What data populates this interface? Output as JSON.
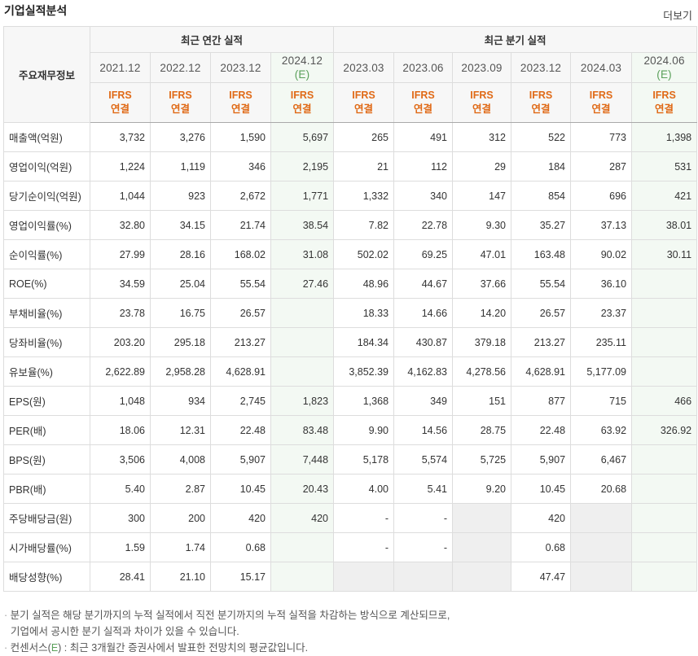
{
  "header": {
    "title": "기업실적분석",
    "more_label": "더보기"
  },
  "table": {
    "row_header_label": "주요재무정보",
    "group_annual": "최근 연간 실적",
    "group_quarter": "최근 분기 실적",
    "periods": [
      {
        "label": "2021.12",
        "est": ""
      },
      {
        "label": "2022.12",
        "est": ""
      },
      {
        "label": "2023.12",
        "est": ""
      },
      {
        "label": "2024.12",
        "est": "(E)"
      },
      {
        "label": "2023.03",
        "est": ""
      },
      {
        "label": "2023.06",
        "est": ""
      },
      {
        "label": "2023.09",
        "est": ""
      },
      {
        "label": "2023.12",
        "est": ""
      },
      {
        "label": "2024.03",
        "est": ""
      },
      {
        "label": "2024.06",
        "est": "(E)"
      }
    ],
    "ifrs_line1": "IFRS",
    "ifrs_line2": "연결",
    "rows": [
      {
        "label": "매출액(억원)",
        "values": [
          "3,732",
          "3,276",
          "1,590",
          "5,697",
          "265",
          "491",
          "312",
          "522",
          "773",
          "1,398"
        ]
      },
      {
        "label": "영업이익(억원)",
        "values": [
          "1,224",
          "1,119",
          "346",
          "2,195",
          "21",
          "112",
          "29",
          "184",
          "287",
          "531"
        ]
      },
      {
        "label": "당기순이익(억원)",
        "values": [
          "1,044",
          "923",
          "2,672",
          "1,771",
          "1,332",
          "340",
          "147",
          "854",
          "696",
          "421"
        ]
      },
      {
        "label": "영업이익률(%)",
        "values": [
          "32.80",
          "34.15",
          "21.74",
          "38.54",
          "7.82",
          "22.78",
          "9.30",
          "35.27",
          "37.13",
          "38.01"
        ]
      },
      {
        "label": "순이익률(%)",
        "values": [
          "27.99",
          "28.16",
          "168.02",
          "31.08",
          "502.02",
          "69.25",
          "47.01",
          "163.48",
          "90.02",
          "30.11"
        ]
      },
      {
        "label": "ROE(%)",
        "values": [
          "34.59",
          "25.04",
          "55.54",
          "27.46",
          "48.96",
          "44.67",
          "37.66",
          "55.54",
          "36.10",
          ""
        ]
      },
      {
        "label": "부채비율(%)",
        "values": [
          "23.78",
          "16.75",
          "26.57",
          "",
          "18.33",
          "14.66",
          "14.20",
          "26.57",
          "23.37",
          ""
        ]
      },
      {
        "label": "당좌비율(%)",
        "values": [
          "203.20",
          "295.18",
          "213.27",
          "",
          "184.34",
          "430.87",
          "379.18",
          "213.27",
          "235.11",
          ""
        ]
      },
      {
        "label": "유보율(%)",
        "values": [
          "2,622.89",
          "2,958.28",
          "4,628.91",
          "",
          "3,852.39",
          "4,162.83",
          "4,278.56",
          "4,628.91",
          "5,177.09",
          ""
        ]
      },
      {
        "label": "EPS(원)",
        "values": [
          "1,048",
          "934",
          "2,745",
          "1,823",
          "1,368",
          "349",
          "151",
          "877",
          "715",
          "466"
        ]
      },
      {
        "label": "PER(배)",
        "values": [
          "18.06",
          "12.31",
          "22.48",
          "83.48",
          "9.90",
          "14.56",
          "28.75",
          "22.48",
          "63.92",
          "326.92"
        ]
      },
      {
        "label": "BPS(원)",
        "values": [
          "3,506",
          "4,008",
          "5,907",
          "7,448",
          "5,178",
          "5,574",
          "5,725",
          "5,907",
          "6,467",
          ""
        ]
      },
      {
        "label": "PBR(배)",
        "values": [
          "5.40",
          "2.87",
          "10.45",
          "20.43",
          "4.00",
          "5.41",
          "9.20",
          "10.45",
          "20.68",
          ""
        ]
      },
      {
        "label": "주당배당금(원)",
        "values": [
          "300",
          "200",
          "420",
          "420",
          "-",
          "-",
          "",
          "420",
          "",
          ""
        ]
      },
      {
        "label": "시가배당률(%)",
        "values": [
          "1.59",
          "1.74",
          "0.68",
          "",
          "-",
          "-",
          "",
          "0.68",
          "",
          ""
        ]
      },
      {
        "label": "배당성향(%)",
        "values": [
          "28.41",
          "21.10",
          "15.17",
          "",
          "",
          "",
          "",
          "47.47",
          "",
          ""
        ]
      }
    ]
  },
  "notes": {
    "note1_line1": "분기 실적은 해당 분기까지의 누적 실적에서 직전 분기까지의 누적 실적을 차감하는 방식으로 계산되므로,",
    "note1_line2": "기업에서 공시한 분기 실적과 차이가 있을 수 있습니다.",
    "note2_prefix": "컨센서스(",
    "note2_e": "E",
    "note2_suffix": ") : 최근 3개월간 증권사에서 발표한 전망치의 평균값입니다."
  },
  "colors": {
    "ifrs": "#e06a17",
    "estimate": "#5aa05a",
    "estimate_bg": "#f3f9f3",
    "gray_cell": "#efefef"
  }
}
